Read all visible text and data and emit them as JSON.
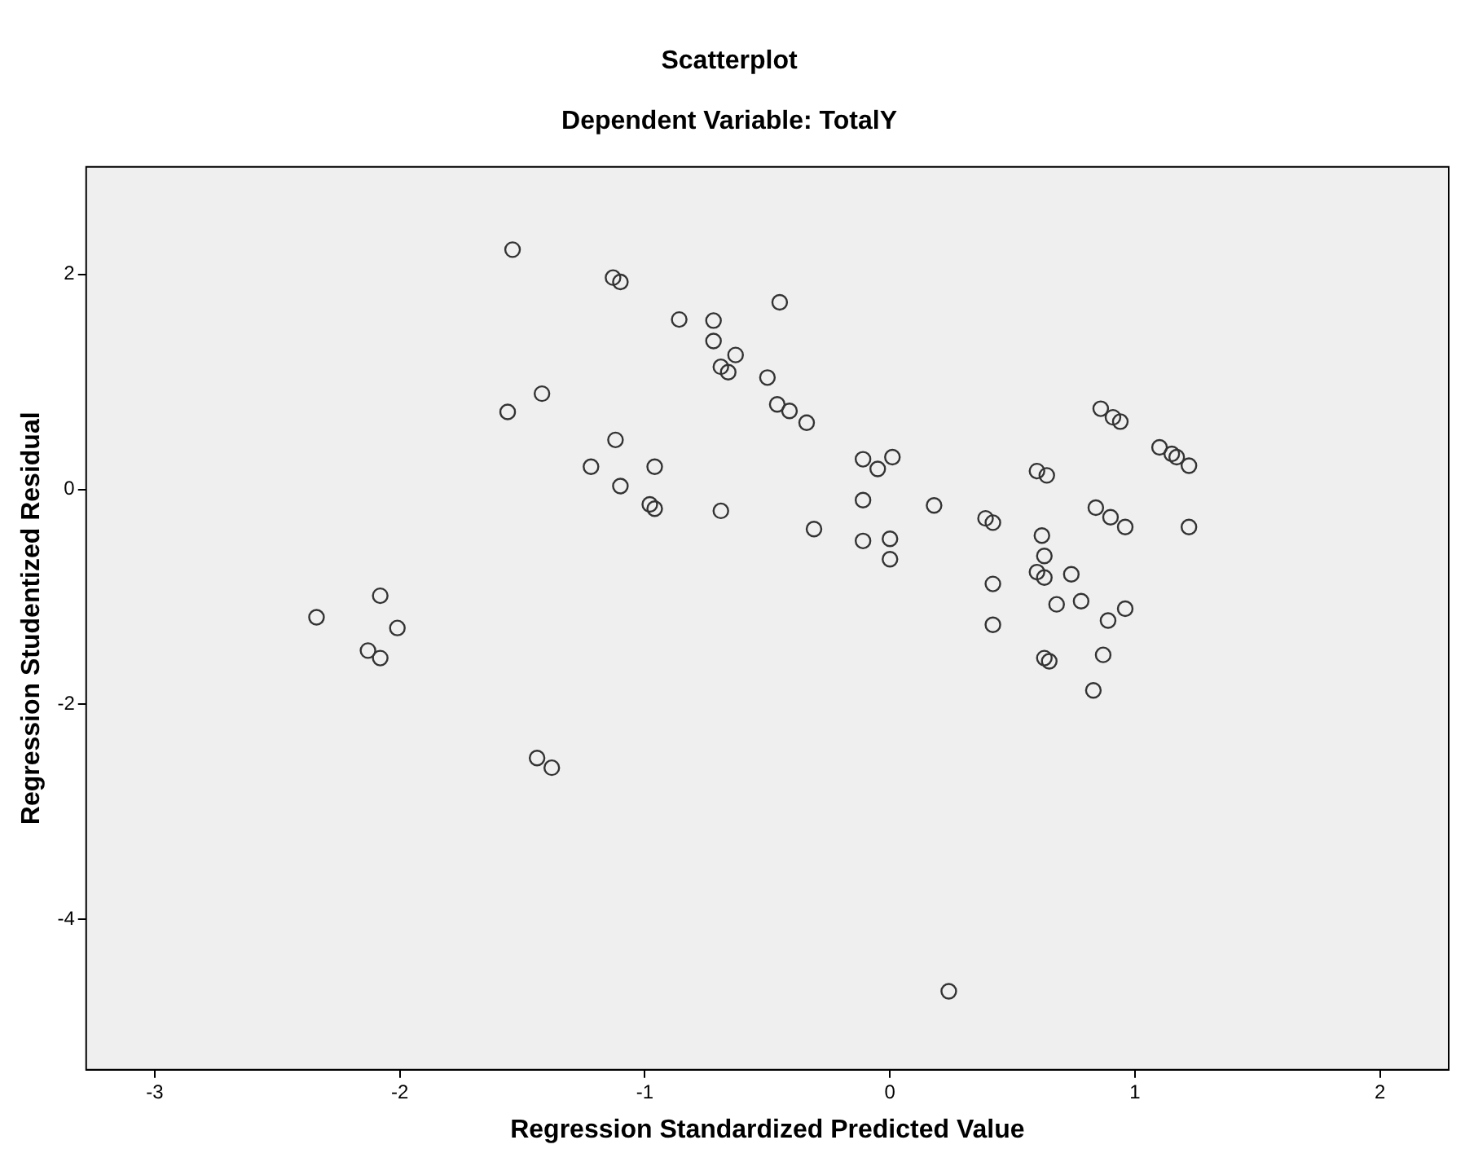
{
  "chart_data": {
    "type": "scatter",
    "title": "Scatterplot",
    "subtitle": "Dependent Variable: TotalY",
    "xlabel": "Regression Standardized Predicted Value",
    "ylabel": "Regression Studentized Residual",
    "xlim": [
      -3.28,
      2.28
    ],
    "xticks": [
      -3,
      -2,
      -1,
      0,
      1,
      2
    ],
    "ylim": [
      -5.4,
      3.0
    ],
    "yticks": [
      -4,
      -2,
      0,
      2
    ],
    "legend": false,
    "marker": "circle",
    "series": [
      {
        "color": "#333333",
        "x": [
          -2.34,
          -2.08,
          -2.01,
          -2.13,
          -2.08,
          -1.44,
          -1.38,
          0.24,
          0.42,
          0.63,
          0.65,
          0.87,
          0.83,
          0.89,
          -1.54,
          -1.13,
          -1.1,
          -0.86,
          -0.72,
          -0.72,
          -0.63,
          -0.69,
          -0.66,
          -0.5,
          -1.56,
          -1.42,
          -1.12,
          -1.22,
          -0.96,
          -1.1,
          -0.98,
          -0.96,
          -0.69,
          -0.45,
          -0.46,
          -0.41,
          -0.34,
          -0.11,
          0.01,
          -0.05,
          -0.11,
          0.18,
          -0.31,
          -0.11,
          0.0,
          0.0,
          0.39,
          0.42,
          0.6,
          0.64,
          0.86,
          0.91,
          0.94,
          1.1,
          1.15,
          1.17,
          1.22,
          0.84,
          0.9,
          0.96,
          1.22,
          0.62,
          0.63,
          0.6,
          0.63,
          0.74,
          0.42,
          0.68,
          0.78,
          0.96
        ],
        "values": [
          -1.19,
          -0.99,
          -1.29,
          -1.5,
          -1.57,
          -2.5,
          -2.59,
          -4.67,
          -1.26,
          -1.57,
          -1.6,
          -1.54,
          -1.87,
          -1.22,
          2.23,
          1.97,
          1.93,
          1.58,
          1.57,
          1.38,
          1.25,
          1.14,
          1.09,
          1.04,
          0.72,
          0.89,
          0.46,
          0.21,
          0.21,
          0.03,
          -0.14,
          -0.18,
          -0.2,
          1.74,
          0.79,
          0.73,
          0.62,
          0.28,
          0.3,
          0.19,
          -0.1,
          -0.15,
          -0.37,
          -0.48,
          -0.46,
          -0.65,
          -0.27,
          -0.31,
          0.17,
          0.13,
          0.75,
          0.67,
          0.63,
          0.39,
          0.33,
          0.3,
          0.22,
          -0.17,
          -0.26,
          -0.35,
          -0.35,
          -0.43,
          -0.62,
          -0.77,
          -0.82,
          -0.79,
          -0.88,
          -1.07,
          -1.04,
          -1.11
        ]
      }
    ]
  }
}
